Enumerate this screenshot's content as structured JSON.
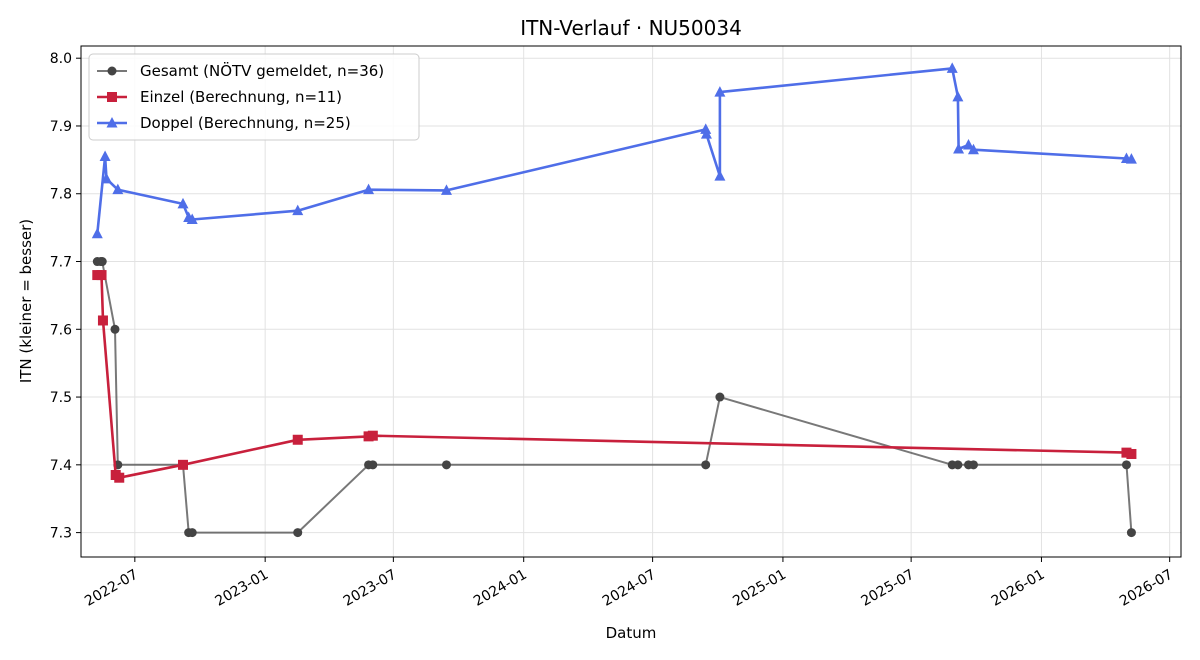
{
  "chart_data": {
    "type": "line",
    "title": "ITN-Verlauf · NU50034",
    "xlabel": "Datum",
    "ylabel": "ITN  (kleiner = besser)",
    "xlim": [
      "2022-04-16",
      "2026-07-17"
    ],
    "ylim": [
      7.264,
      8.018
    ],
    "x_ticks": [
      "2022-07",
      "2023-01",
      "2023-07",
      "2024-01",
      "2024-07",
      "2025-01",
      "2025-07",
      "2026-01",
      "2026-07"
    ],
    "y_ticks": [
      7.3,
      7.4,
      7.5,
      7.6,
      7.7,
      7.8,
      7.9,
      8.0
    ],
    "grid": true,
    "legend_position": "top-left",
    "series": [
      {
        "name": "Gesamt (NÖTV gemeldet, n=36)",
        "color": "#444444",
        "marker": "circle",
        "points": [
          {
            "x": "2022-05-09",
            "y": 7.7
          },
          {
            "x": "2022-05-14",
            "y": 7.7
          },
          {
            "x": "2022-05-16",
            "y": 7.7
          },
          {
            "x": "2022-06-03",
            "y": 7.6
          },
          {
            "x": "2022-06-07",
            "y": 7.4
          },
          {
            "x": "2022-09-07",
            "y": 7.4
          },
          {
            "x": "2022-09-15",
            "y": 7.3
          },
          {
            "x": "2022-09-20",
            "y": 7.3
          },
          {
            "x": "2023-02-16",
            "y": 7.3
          },
          {
            "x": "2023-05-27",
            "y": 7.4
          },
          {
            "x": "2023-06-02",
            "y": 7.4
          },
          {
            "x": "2023-09-14",
            "y": 7.4
          },
          {
            "x": "2024-09-14",
            "y": 7.4
          },
          {
            "x": "2024-10-04",
            "y": 7.5
          },
          {
            "x": "2025-08-28",
            "y": 7.4
          },
          {
            "x": "2025-09-05",
            "y": 7.4
          },
          {
            "x": "2025-09-20",
            "y": 7.4
          },
          {
            "x": "2025-09-27",
            "y": 7.4
          },
          {
            "x": "2026-05-01",
            "y": 7.4
          },
          {
            "x": "2026-05-08",
            "y": 7.3
          }
        ]
      },
      {
        "name": "Einzel (Berechnung, n=11)",
        "color": "#c8203c",
        "marker": "square",
        "points": [
          {
            "x": "2022-05-09",
            "y": 7.68
          },
          {
            "x": "2022-05-15",
            "y": 7.68
          },
          {
            "x": "2022-05-17",
            "y": 7.613
          },
          {
            "x": "2022-06-04",
            "y": 7.385
          },
          {
            "x": "2022-06-09",
            "y": 7.381
          },
          {
            "x": "2022-09-07",
            "y": 7.4
          },
          {
            "x": "2023-02-16",
            "y": 7.437
          },
          {
            "x": "2023-05-27",
            "y": 7.442
          },
          {
            "x": "2023-06-02",
            "y": 7.443
          },
          {
            "x": "2026-05-01",
            "y": 7.418
          },
          {
            "x": "2026-05-08",
            "y": 7.416
          }
        ]
      },
      {
        "name": "Doppel (Berechnung, n=25)",
        "color": "#4f6ee8",
        "marker": "triangle",
        "points": [
          {
            "x": "2022-05-09",
            "y": 7.741
          },
          {
            "x": "2022-05-20",
            "y": 7.855
          },
          {
            "x": "2022-05-22",
            "y": 7.822
          },
          {
            "x": "2022-06-07",
            "y": 7.806
          },
          {
            "x": "2022-09-07",
            "y": 7.785
          },
          {
            "x": "2022-09-15",
            "y": 7.765
          },
          {
            "x": "2022-09-20",
            "y": 7.762
          },
          {
            "x": "2023-02-16",
            "y": 7.775
          },
          {
            "x": "2023-05-27",
            "y": 7.806
          },
          {
            "x": "2023-09-14",
            "y": 7.805
          },
          {
            "x": "2024-09-14",
            "y": 7.895
          },
          {
            "x": "2024-09-15",
            "y": 7.888
          },
          {
            "x": "2024-10-04",
            "y": 7.826
          },
          {
            "x": "2024-10-04",
            "y": 7.95
          },
          {
            "x": "2025-08-28",
            "y": 7.985
          },
          {
            "x": "2025-09-05",
            "y": 7.943
          },
          {
            "x": "2025-09-06",
            "y": 7.866
          },
          {
            "x": "2025-09-20",
            "y": 7.872
          },
          {
            "x": "2025-09-27",
            "y": 7.865
          },
          {
            "x": "2026-05-01",
            "y": 7.852
          },
          {
            "x": "2026-05-08",
            "y": 7.851
          }
        ]
      }
    ]
  }
}
